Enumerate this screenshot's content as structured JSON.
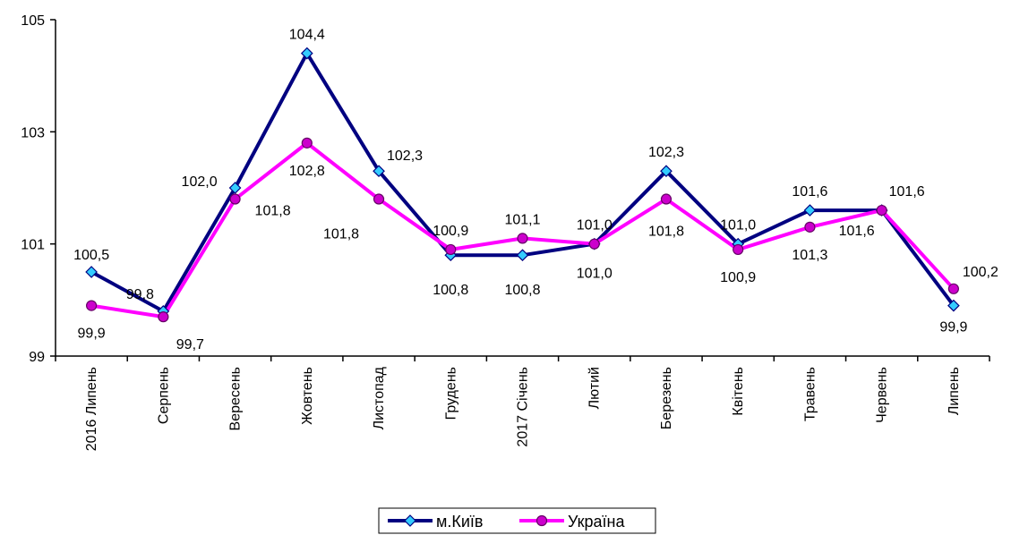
{
  "chart_data": {
    "type": "line",
    "title": "",
    "xlabel": "",
    "ylabel": "",
    "ylim": [
      99,
      105
    ],
    "yticks": [
      "99",
      "101",
      "103",
      "105"
    ],
    "grid": false,
    "legend_position": "bottom",
    "categories": [
      "2016 Липень",
      "Серпень",
      "Вересень",
      "Жовтень",
      "Листопад",
      "Грудень",
      "2017 Січень",
      "Лютий",
      "Березень",
      "Квітень",
      "Травень",
      "Червень",
      "Липень"
    ],
    "series": [
      {
        "name": "м.Київ",
        "color": "#000080",
        "marker_color": "#33ccff",
        "marker": "diamond",
        "values": [
          100.5,
          99.8,
          102.0,
          104.4,
          102.3,
          100.8,
          100.8,
          101.0,
          102.3,
          101.0,
          101.6,
          101.6,
          99.9
        ],
        "labels": [
          "100,5",
          "99,8",
          "102,0",
          "104,4",
          "102,3",
          "100,8",
          "100,8",
          "101,0",
          "102,3",
          "101,0",
          "101,6",
          "101,6",
          "99,9"
        ]
      },
      {
        "name": "Україна",
        "color": "#ff00ff",
        "marker_color": "#cc00cc",
        "marker": "circle",
        "values": [
          99.9,
          99.7,
          101.8,
          102.8,
          101.8,
          100.9,
          101.1,
          101.0,
          101.8,
          100.9,
          101.3,
          101.6,
          100.2
        ],
        "labels": [
          "99,9",
          "99,7",
          "101,8",
          "102,8",
          "101,8",
          "100,9",
          "101,1",
          "101,0",
          "101,8",
          "100,9",
          "101,3",
          "101,6",
          "100,2"
        ]
      }
    ]
  }
}
